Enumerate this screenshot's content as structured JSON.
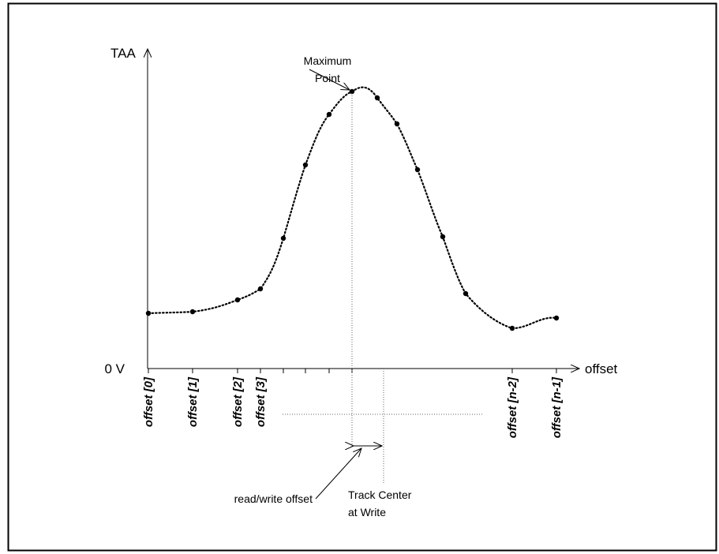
{
  "axes": {
    "y_label": "TAA",
    "origin_label": "0 V",
    "x_label": "offset"
  },
  "annotations": {
    "maximum": [
      "Maximum",
      "Point"
    ],
    "read_write_offset": "read/write offset",
    "track_center": [
      "Track Center",
      "at Write"
    ]
  },
  "offset_labels": [
    "offset [0]",
    "offset [1]",
    "offset [2]",
    "offset [3]",
    "offset [n-2]",
    "offset [n-1]"
  ]
}
